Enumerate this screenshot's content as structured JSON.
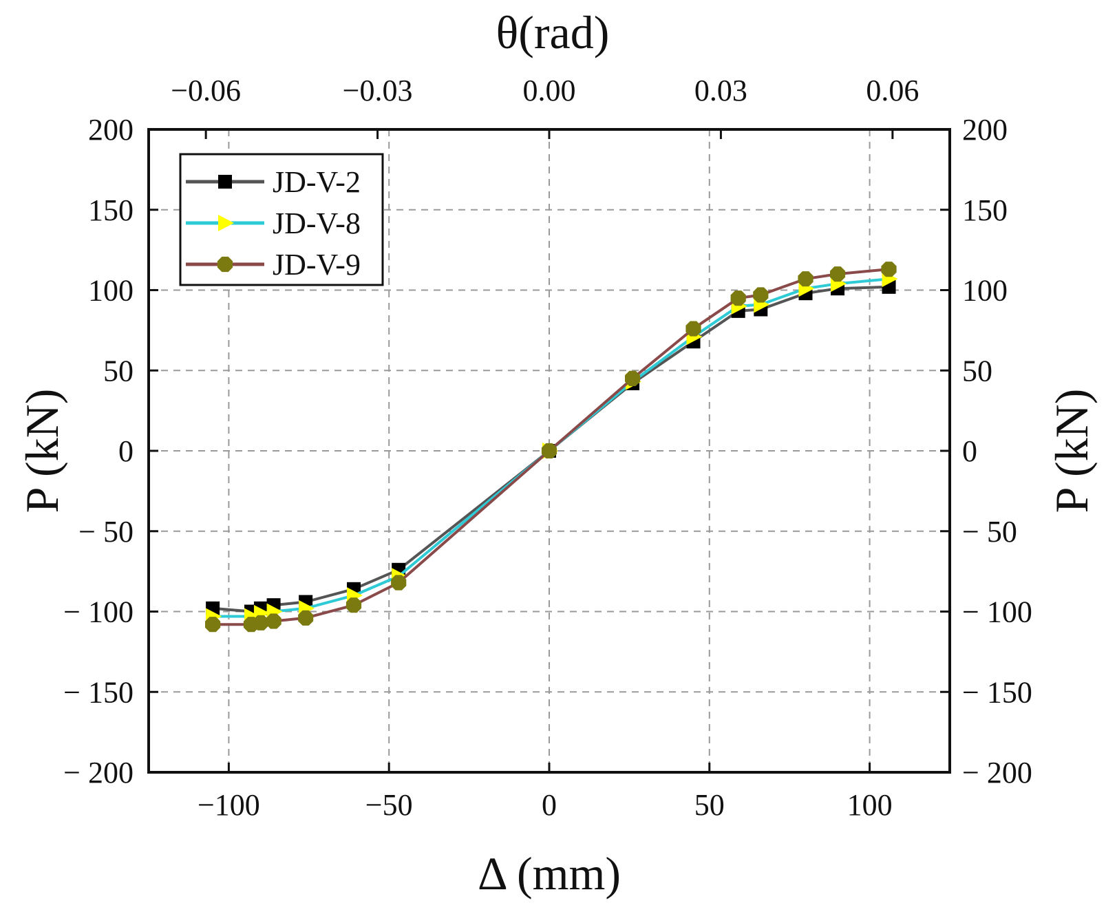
{
  "chart_data": {
    "type": "line",
    "xlabel": "Δ (mm)",
    "ylabel": "P (kN)",
    "ylabel_right": "P (kN)",
    "x2label": "θ(rad)",
    "xlim": [
      -125,
      125
    ],
    "ylim": [
      -200,
      200
    ],
    "x2lim": [
      -0.07,
      0.07
    ],
    "x_ticks": [
      -100,
      -50,
      0,
      50,
      100
    ],
    "x_tick_labels": [
      "−100",
      "−50",
      "0",
      "50",
      "100"
    ],
    "y_ticks": [
      200,
      150,
      100,
      50,
      0,
      -50,
      -100,
      -150,
      -200
    ],
    "y_tick_labels": [
      "200",
      "150",
      "100",
      "50",
      "0",
      "− 50",
      "− 100",
      "− 150",
      "− 200"
    ],
    "x2_ticks": [
      -0.06,
      -0.03,
      0.0,
      0.03,
      0.06
    ],
    "x2_tick_labels": [
      "−0.06",
      "−0.03",
      "0.00",
      "0.03",
      "0.06"
    ],
    "grid": true,
    "legend_position": "top-left",
    "series": [
      {
        "name": "JD-V-2",
        "line_color": "#555555",
        "marker": "square",
        "marker_color": "#000000",
        "x": [
          -105,
          -93,
          -90,
          -86,
          -76,
          -61,
          -47,
          0,
          26,
          45,
          59,
          66,
          80,
          90,
          106
        ],
        "y": [
          -98,
          -100,
          -98,
          -96,
          -94,
          -86,
          -74,
          0,
          42,
          68,
          87,
          88,
          98,
          101,
          102
        ]
      },
      {
        "name": "JD-V-8",
        "line_color": "#2ecbd6",
        "marker": "triangle-right",
        "marker_color": "#ffff00",
        "x": [
          -105,
          -93,
          -90,
          -86,
          -76,
          -61,
          -47,
          0,
          26,
          45,
          59,
          66,
          80,
          90,
          106
        ],
        "y": [
          -103,
          -103,
          -101,
          -100,
          -98,
          -90,
          -78,
          0,
          43,
          71,
          90,
          91,
          101,
          104,
          107
        ]
      },
      {
        "name": "JD-V-9",
        "line_color": "#8b4a4a",
        "marker": "circle",
        "marker_color": "#7a7a10",
        "x": [
          -105,
          -93,
          -90,
          -86,
          -76,
          -61,
          -47,
          0,
          26,
          45,
          59,
          66,
          80,
          90,
          106
        ],
        "y": [
          -108,
          -108,
          -107,
          -106,
          -104,
          -96,
          -82,
          0,
          45,
          76,
          95,
          97,
          107,
          110,
          113
        ]
      }
    ]
  }
}
